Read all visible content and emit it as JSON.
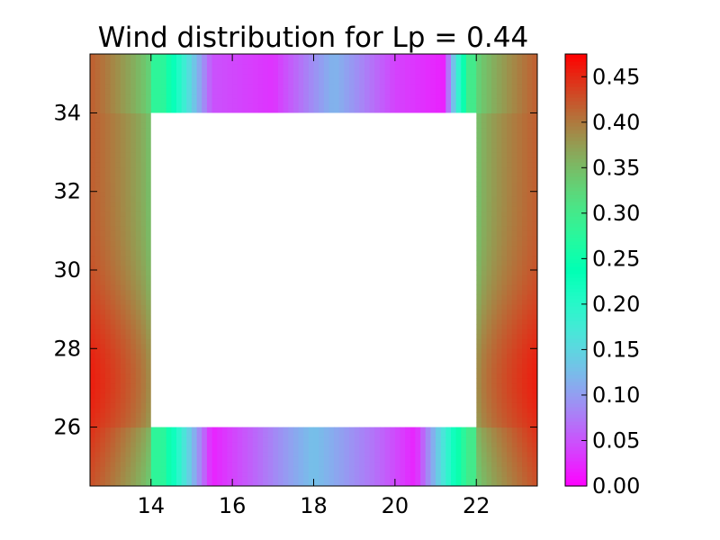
{
  "chart_data": {
    "type": "heatmap",
    "title": "Wind distribution for Lp = 0.44",
    "xlabel": "",
    "ylabel": "",
    "xlim": [
      12.5,
      23.5
    ],
    "ylim": [
      24.5,
      35.5
    ],
    "x_ticks": [
      14,
      16,
      18,
      20,
      22
    ],
    "y_ticks": [
      26,
      28,
      30,
      32,
      34
    ],
    "x_tick_labels": [
      "14",
      "16",
      "18",
      "20",
      "22"
    ],
    "y_tick_labels": [
      "26",
      "28",
      "30",
      "32",
      "34"
    ],
    "colormap": "rainbow",
    "color_range": [
      0.0,
      0.475
    ],
    "colorbar": {
      "ticks": [
        0.0,
        0.05,
        0.1,
        0.15,
        0.2,
        0.25,
        0.3,
        0.35,
        0.4,
        0.45
      ],
      "labels": [
        "0.00",
        "0.05",
        "0.10",
        "0.15",
        "0.20",
        "0.25",
        "0.30",
        "0.35",
        "0.40",
        "0.45"
      ],
      "placement": "right"
    },
    "masked_region": {
      "x": [
        14,
        22
      ],
      "y": [
        26,
        34
      ]
    },
    "grid": false,
    "approximate_values": {
      "left_strip_x12_5_to_14": [
        0.43,
        0.4,
        0.35
      ],
      "right_strip_x22_to_23_5": [
        0.35,
        0.4,
        0.43
      ],
      "right_strip_max_at_y": 27.2,
      "left_strip_max_at_y": 27.2,
      "top_strip_y34_to_35_5": {
        "x": [
          14.3,
          15.5,
          17,
          18.5,
          20,
          21.2,
          21.8
        ],
        "value": [
          0.28,
          0.05,
          0.03,
          0.12,
          0.04,
          0.02,
          0.3
        ]
      },
      "bottom_strip_y24_5_to_26": {
        "x": [
          14.3,
          15.5,
          16.5,
          18,
          19.5,
          20.5,
          21.8
        ],
        "value": [
          0.28,
          0.02,
          0.06,
          0.13,
          0.07,
          0.02,
          0.3
        ]
      }
    }
  }
}
